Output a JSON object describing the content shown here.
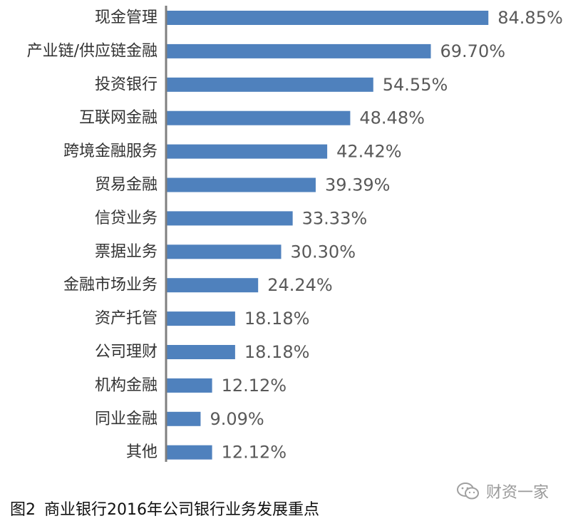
{
  "chart_data": {
    "type": "bar",
    "orientation": "horizontal",
    "categories": [
      "现金管理",
      "产业链/供应链金融",
      "投资银行",
      "互联网金融",
      "跨境金融服务",
      "贸易金融",
      "信贷业务",
      "票据业务",
      "金融市场业务",
      "资产托管",
      "公司理财",
      "机构金融",
      "同业金融",
      "其他"
    ],
    "values": [
      84.85,
      69.7,
      54.55,
      48.48,
      42.42,
      39.39,
      33.33,
      30.3,
      24.24,
      18.18,
      18.18,
      12.12,
      9.09,
      12.12
    ],
    "value_labels": [
      "84.85%",
      "69.70%",
      "54.55%",
      "48.48%",
      "42.42%",
      "39.39%",
      "33.33%",
      "30.30%",
      "24.24%",
      "18.18%",
      "18.18%",
      "12.12%",
      "9.09%",
      "12.12%"
    ],
    "xlim": [
      0,
      100
    ],
    "grid": false,
    "legend": "none",
    "bar_color": "#4f81bd",
    "axis_color": "#7f7f7f"
  },
  "caption": {
    "figure_number": "图2",
    "text": "商业银行2016年公司银行业务发展重点"
  },
  "watermark": {
    "icon": "wechat-icon",
    "text": "财资一家"
  }
}
